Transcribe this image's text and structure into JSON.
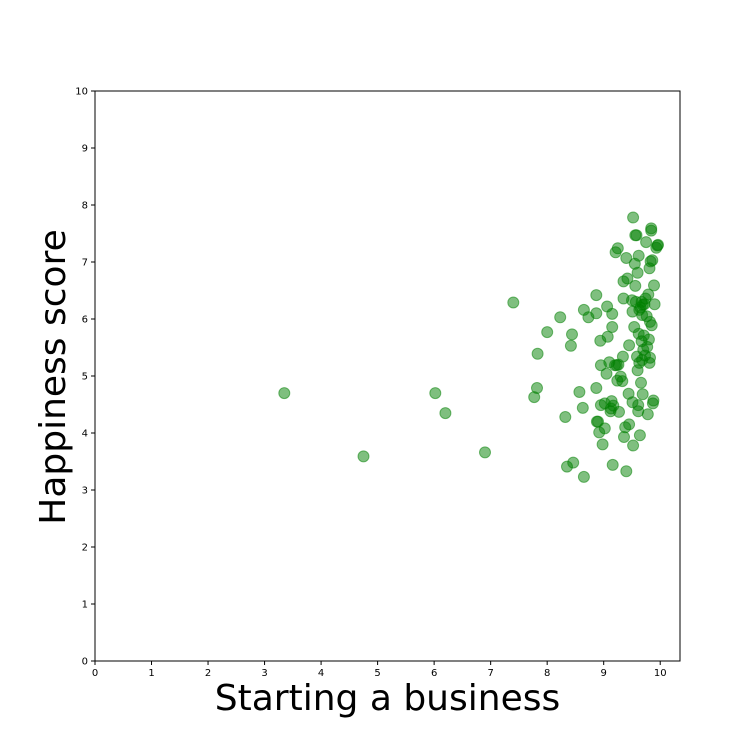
{
  "chart_data": {
    "type": "scatter",
    "title": "",
    "xlabel": "Starting a business",
    "ylabel": "Happiness score",
    "xlim": [
      0,
      10.35
    ],
    "ylim": [
      0,
      10
    ],
    "xticks": [
      "0",
      "1",
      "2",
      "3",
      "4",
      "5",
      "6",
      "7",
      "8",
      "9",
      "10"
    ],
    "yticks": [
      "0",
      "1",
      "2",
      "3",
      "4",
      "5",
      "6",
      "7",
      "8",
      "9",
      "10"
    ],
    "grid": false,
    "legend": "none",
    "marker_color": "#008000",
    "marker_alpha": 0.5,
    "points": [
      [
        3.35,
        4.7
      ],
      [
        4.75,
        3.59
      ],
      [
        6.02,
        4.7
      ],
      [
        6.2,
        4.35
      ],
      [
        6.9,
        3.66
      ],
      [
        7.4,
        6.29
      ],
      [
        7.77,
        4.63
      ],
      [
        7.82,
        4.79
      ],
      [
        7.83,
        5.39
      ],
      [
        8.0,
        5.77
      ],
      [
        8.23,
        6.03
      ],
      [
        8.32,
        4.28
      ],
      [
        8.35,
        3.41
      ],
      [
        8.42,
        5.53
      ],
      [
        8.44,
        5.73
      ],
      [
        8.46,
        3.48
      ],
      [
        8.57,
        4.72
      ],
      [
        8.63,
        4.44
      ],
      [
        8.65,
        3.23
      ],
      [
        8.65,
        6.16
      ],
      [
        8.73,
        6.03
      ],
      [
        8.87,
        6.42
      ],
      [
        8.87,
        6.1
      ],
      [
        8.87,
        4.79
      ],
      [
        8.88,
        4.2
      ],
      [
        8.9,
        4.2
      ],
      [
        8.92,
        4.01
      ],
      [
        8.94,
        5.62
      ],
      [
        8.95,
        4.49
      ],
      [
        8.95,
        5.19
      ],
      [
        8.98,
        3.8
      ],
      [
        9.02,
        4.52
      ],
      [
        9.02,
        4.08
      ],
      [
        9.05,
        5.04
      ],
      [
        9.06,
        6.22
      ],
      [
        9.07,
        5.69
      ],
      [
        9.1,
        5.24
      ],
      [
        9.12,
        4.38
      ],
      [
        9.13,
        4.43
      ],
      [
        9.14,
        4.56
      ],
      [
        9.15,
        6.09
      ],
      [
        9.15,
        5.86
      ],
      [
        9.16,
        3.44
      ],
      [
        9.17,
        4.48
      ],
      [
        9.2,
        5.19
      ],
      [
        9.21,
        7.17
      ],
      [
        9.23,
        5.19
      ],
      [
        9.24,
        4.92
      ],
      [
        9.25,
        7.24
      ],
      [
        9.26,
        5.2
      ],
      [
        9.27,
        4.37
      ],
      [
        9.3,
        4.99
      ],
      [
        9.33,
        4.91
      ],
      [
        9.34,
        5.34
      ],
      [
        9.35,
        6.36
      ],
      [
        9.35,
        6.66
      ],
      [
        9.36,
        3.93
      ],
      [
        9.38,
        4.1
      ],
      [
        9.4,
        3.33
      ],
      [
        9.4,
        7.07
      ],
      [
        9.42,
        6.71
      ],
      [
        9.44,
        4.69
      ],
      [
        9.45,
        5.54
      ],
      [
        9.45,
        4.15
      ],
      [
        9.5,
        6.33
      ],
      [
        9.51,
        6.13
      ],
      [
        9.51,
        4.54
      ],
      [
        9.52,
        3.78
      ],
      [
        9.52,
        7.78
      ],
      [
        9.54,
        5.86
      ],
      [
        9.55,
        6.97
      ],
      [
        9.56,
        6.58
      ],
      [
        9.56,
        7.47
      ],
      [
        9.57,
        6.3
      ],
      [
        9.58,
        7.47
      ],
      [
        9.59,
        5.34
      ],
      [
        9.6,
        5.1
      ],
      [
        9.6,
        6.81
      ],
      [
        9.61,
        4.38
      ],
      [
        9.61,
        4.49
      ],
      [
        9.62,
        7.11
      ],
      [
        9.62,
        5.74
      ],
      [
        9.63,
        5.23
      ],
      [
        9.63,
        6.16
      ],
      [
        9.64,
        3.96
      ],
      [
        9.65,
        6.2
      ],
      [
        9.66,
        4.88
      ],
      [
        9.67,
        5.61
      ],
      [
        9.67,
        6.3
      ],
      [
        9.68,
        6.07
      ],
      [
        9.68,
        5.28
      ],
      [
        9.69,
        6.25
      ],
      [
        9.69,
        4.68
      ],
      [
        9.7,
        5.46
      ],
      [
        9.71,
        5.71
      ],
      [
        9.72,
        6.26
      ],
      [
        9.73,
        5.36
      ],
      [
        9.74,
        6.36
      ],
      [
        9.75,
        7.35
      ],
      [
        9.76,
        6.05
      ],
      [
        9.77,
        5.51
      ],
      [
        9.78,
        4.33
      ],
      [
        9.79,
        6.43
      ],
      [
        9.8,
        5.64
      ],
      [
        9.81,
        6.89
      ],
      [
        9.81,
        5.23
      ],
      [
        9.82,
        5.95
      ],
      [
        9.82,
        5.32
      ],
      [
        9.83,
        7.01
      ],
      [
        9.84,
        7.55
      ],
      [
        9.84,
        7.59
      ],
      [
        9.85,
        5.89
      ],
      [
        9.86,
        7.03
      ],
      [
        9.87,
        4.52
      ],
      [
        9.88,
        4.57
      ],
      [
        9.89,
        6.59
      ],
      [
        9.9,
        6.26
      ],
      [
        9.93,
        7.25
      ],
      [
        9.95,
        7.29
      ],
      [
        9.96,
        7.3
      ]
    ]
  }
}
